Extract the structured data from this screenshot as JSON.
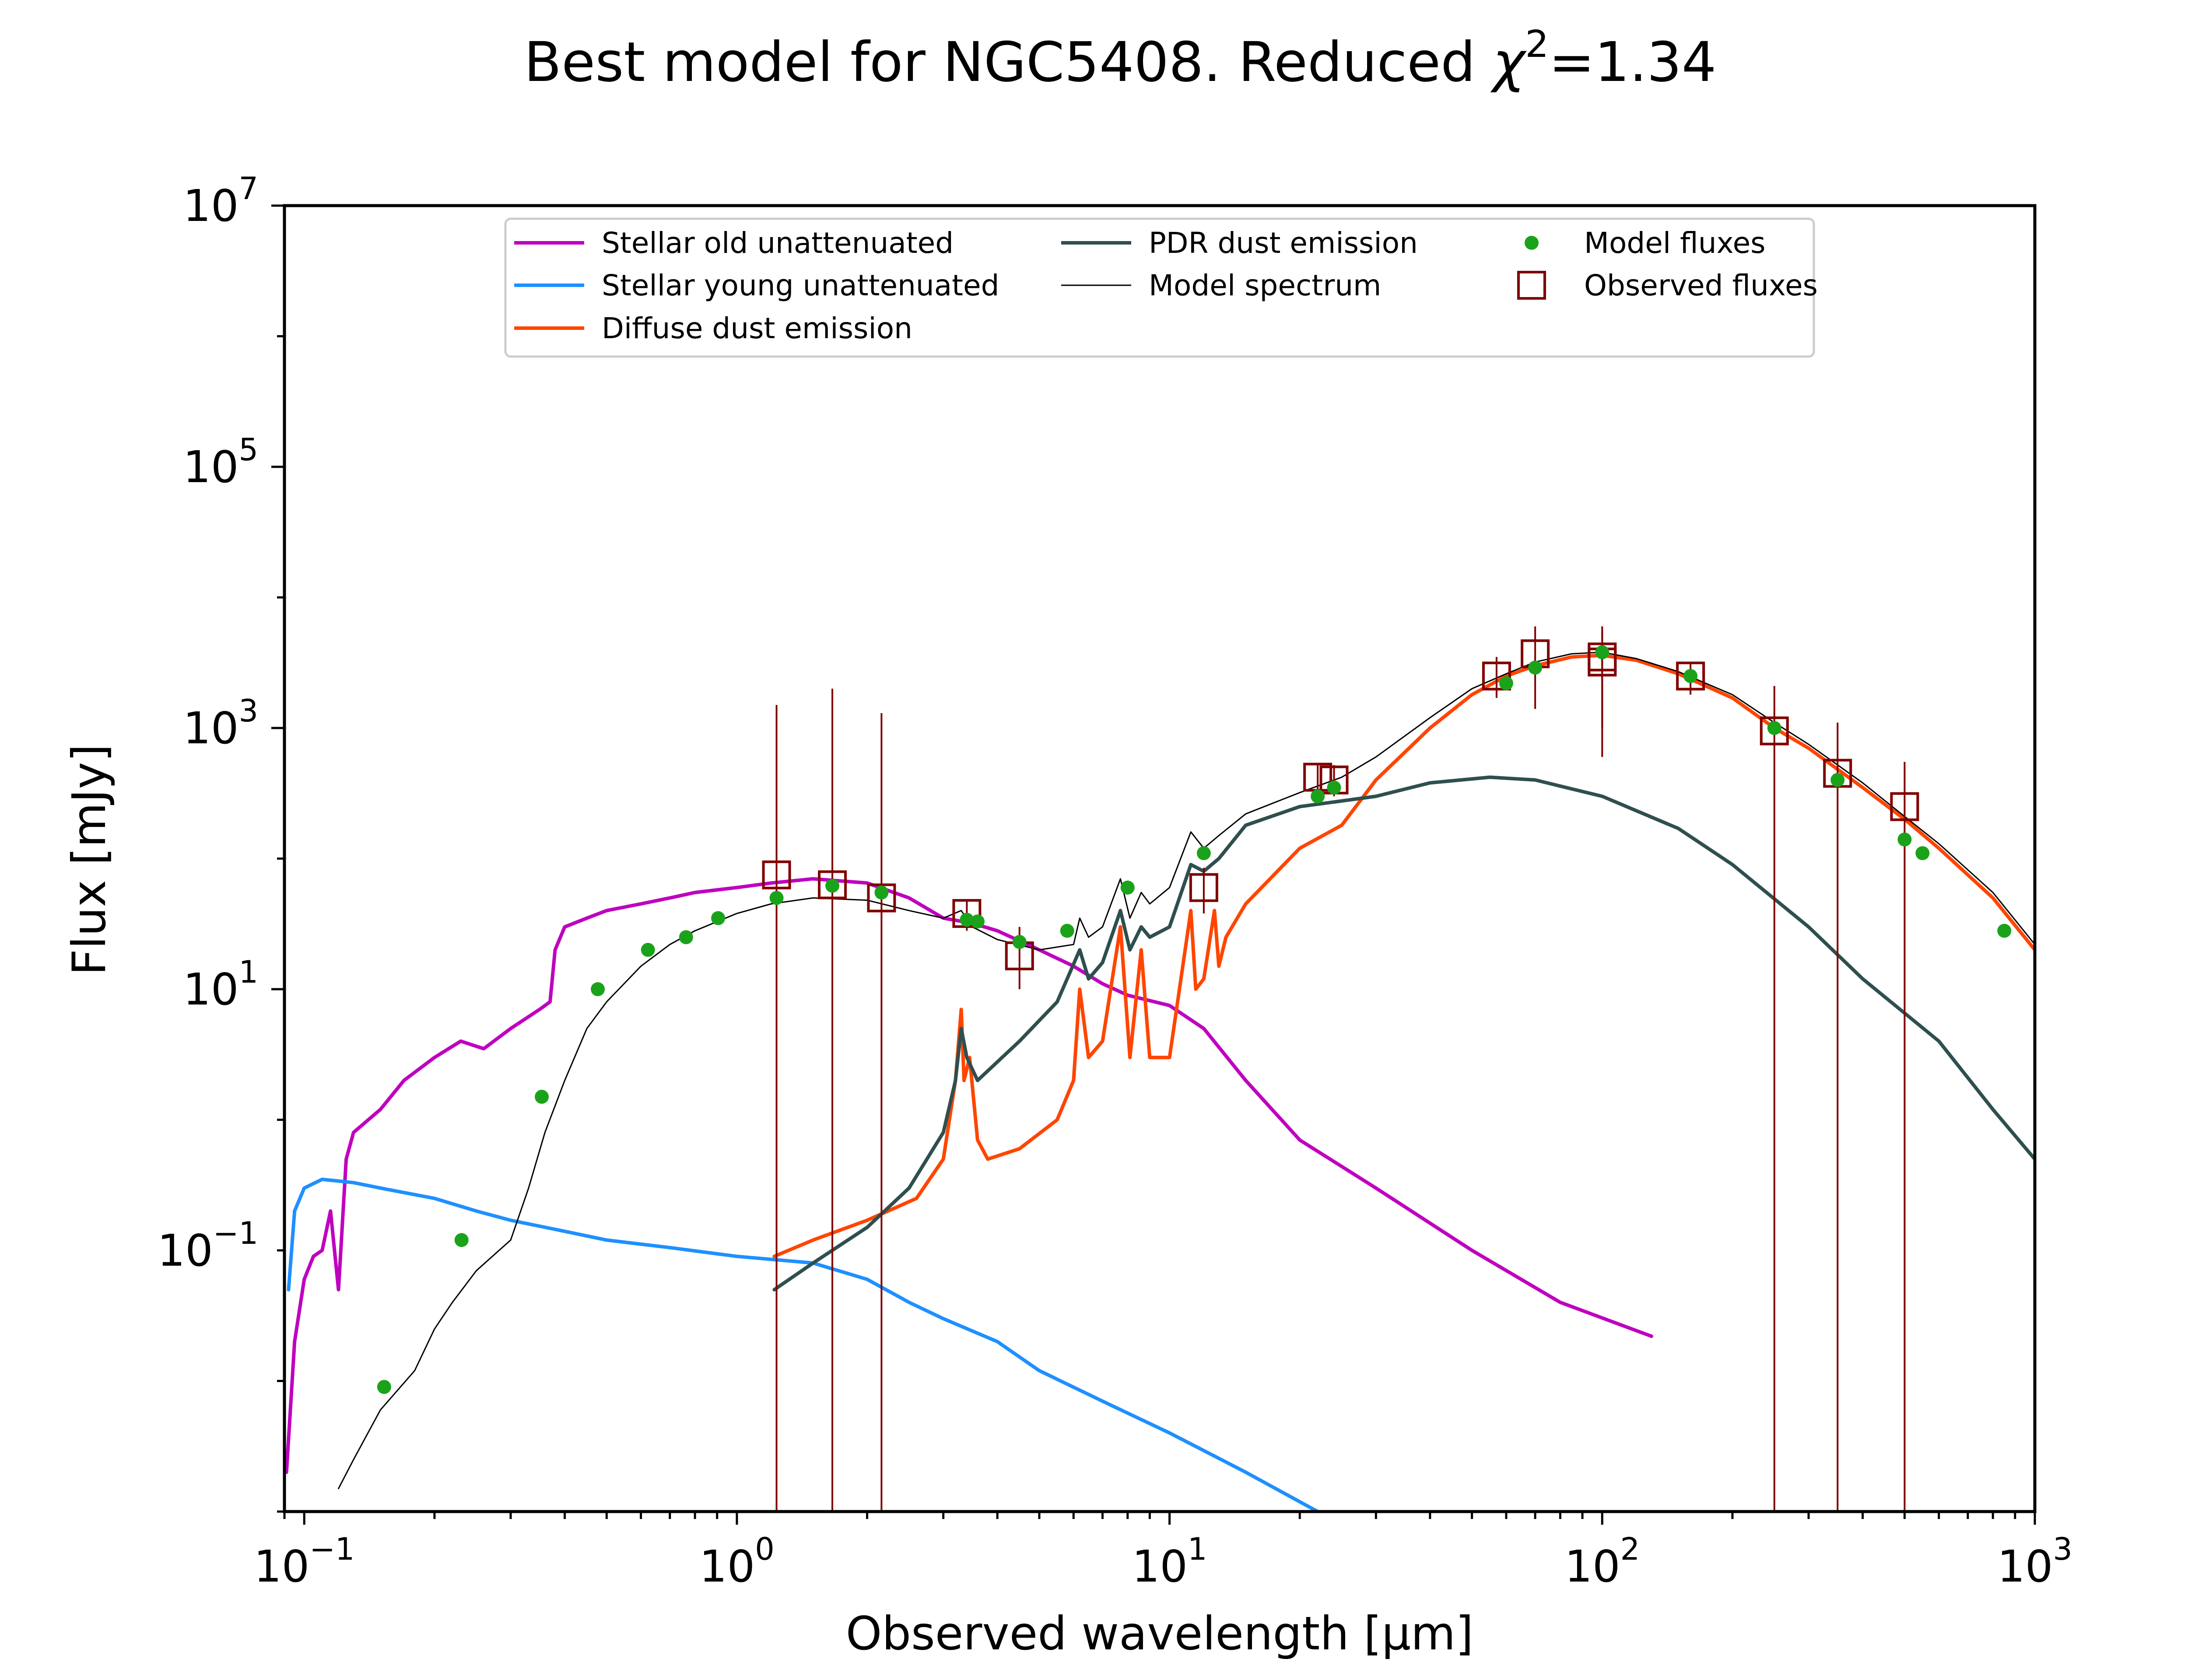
{
  "chart_data": {
    "type": "line",
    "title_main": "Best model for NGC5408. Reduced ",
    "title_chi": "χ",
    "title_sup": "2",
    "title_val": "=1.34",
    "xlabel": "Observed wavelength [μm]",
    "ylabel": "Flux [mJy]",
    "x_scale": "log",
    "y_scale": "log",
    "xlim": [
      0.09,
      1000
    ],
    "ylim": [
      0.001,
      10000000
    ],
    "grid": false,
    "legend_position": "top-center",
    "x_ticks": [
      {
        "value": 0.1,
        "base": "10",
        "exp": "−1"
      },
      {
        "value": 1,
        "base": "10",
        "exp": "0"
      },
      {
        "value": 10,
        "base": "10",
        "exp": "1"
      },
      {
        "value": 100,
        "base": "10",
        "exp": "2"
      },
      {
        "value": 1000,
        "base": "10",
        "exp": "3"
      }
    ],
    "y_ticks": [
      {
        "value": 0.1,
        "base": "10",
        "exp": "−1"
      },
      {
        "value": 10,
        "base": "10",
        "exp": "1"
      },
      {
        "value": 1000,
        "base": "10",
        "exp": "3"
      },
      {
        "value": 100000,
        "base": "10",
        "exp": "5"
      },
      {
        "value": 10000000,
        "base": "10",
        "exp": "7"
      }
    ],
    "legend": [
      {
        "label": "Stellar old unattenuated",
        "kind": "line",
        "color": "#bf00bf",
        "width": 8
      },
      {
        "label": "Stellar young unattenuated",
        "kind": "line",
        "color": "#1e90ff",
        "width": 8
      },
      {
        "label": "Diffuse dust emission",
        "kind": "line",
        "color": "#ff4500",
        "width": 8
      },
      {
        "label": "PDR dust emission",
        "kind": "line",
        "color": "#2f4f4f",
        "width": 8
      },
      {
        "label": "Model spectrum",
        "kind": "line",
        "color": "#000000",
        "width": 3
      },
      {
        "label": "Model fluxes",
        "kind": "dot",
        "color": "#1aa31a"
      },
      {
        "label": "Observed fluxes",
        "kind": "square",
        "color": "#800000"
      }
    ],
    "series": [
      {
        "name": "Stellar old unattenuated",
        "color": "#bf00bf",
        "width": 8,
        "points": [
          [
            0.091,
            0.002
          ],
          [
            0.095,
            0.02
          ],
          [
            0.1,
            0.06
          ],
          [
            0.105,
            0.09
          ],
          [
            0.11,
            0.1
          ],
          [
            0.115,
            0.2
          ],
          [
            0.12,
            0.05
          ],
          [
            0.125,
            0.5
          ],
          [
            0.13,
            0.8
          ],
          [
            0.15,
            1.2
          ],
          [
            0.17,
            2
          ],
          [
            0.2,
            3
          ],
          [
            0.23,
            4
          ],
          [
            0.26,
            3.5
          ],
          [
            0.3,
            5
          ],
          [
            0.35,
            7
          ],
          [
            0.37,
            8
          ],
          [
            0.38,
            20
          ],
          [
            0.4,
            30
          ],
          [
            0.45,
            35
          ],
          [
            0.5,
            40
          ],
          [
            0.6,
            45
          ],
          [
            0.7,
            50
          ],
          [
            0.8,
            55
          ],
          [
            1.0,
            60
          ],
          [
            1.2,
            65
          ],
          [
            1.5,
            70
          ],
          [
            2.0,
            65
          ],
          [
            2.5,
            50
          ],
          [
            3.0,
            35
          ],
          [
            3.5,
            32
          ],
          [
            4.0,
            28
          ],
          [
            5.0,
            20
          ],
          [
            6.0,
            15
          ],
          [
            7.0,
            11
          ],
          [
            8.0,
            9
          ],
          [
            10,
            7.5
          ],
          [
            12,
            5
          ],
          [
            15,
            2
          ],
          [
            20,
            0.7
          ],
          [
            30,
            0.3
          ],
          [
            50,
            0.1
          ],
          [
            80,
            0.04
          ],
          [
            130,
            0.022
          ]
        ]
      },
      {
        "name": "Stellar young unattenuated",
        "color": "#1e90ff",
        "width": 8,
        "points": [
          [
            0.092,
            0.05
          ],
          [
            0.095,
            0.2
          ],
          [
            0.1,
            0.3
          ],
          [
            0.11,
            0.35
          ],
          [
            0.13,
            0.33
          ],
          [
            0.15,
            0.3
          ],
          [
            0.2,
            0.25
          ],
          [
            0.25,
            0.2
          ],
          [
            0.3,
            0.17
          ],
          [
            0.4,
            0.14
          ],
          [
            0.5,
            0.12
          ],
          [
            0.7,
            0.105
          ],
          [
            1.0,
            0.09
          ],
          [
            1.5,
            0.08
          ],
          [
            2.0,
            0.06
          ],
          [
            2.5,
            0.04
          ],
          [
            3.0,
            0.03
          ],
          [
            4.0,
            0.02
          ],
          [
            5.0,
            0.012
          ],
          [
            7.0,
            0.007
          ],
          [
            10,
            0.004
          ],
          [
            15,
            0.002
          ],
          [
            22,
            0.001
          ]
        ]
      },
      {
        "name": "Diffuse dust emission",
        "color": "#ff4500",
        "width": 8,
        "points": [
          [
            1.22,
            0.09
          ],
          [
            1.5,
            0.12
          ],
          [
            2.0,
            0.17
          ],
          [
            2.6,
            0.25
          ],
          [
            3.0,
            0.5
          ],
          [
            3.2,
            2
          ],
          [
            3.3,
            7
          ],
          [
            3.35,
            2
          ],
          [
            3.45,
            3
          ],
          [
            3.6,
            0.7
          ],
          [
            3.8,
            0.5
          ],
          [
            4.5,
            0.6
          ],
          [
            5.5,
            1
          ],
          [
            6.0,
            2
          ],
          [
            6.2,
            10
          ],
          [
            6.5,
            3
          ],
          [
            7.0,
            4
          ],
          [
            7.7,
            30
          ],
          [
            8.1,
            3
          ],
          [
            8.6,
            20
          ],
          [
            9.0,
            3
          ],
          [
            10,
            3
          ],
          [
            11.2,
            40
          ],
          [
            11.5,
            10
          ],
          [
            12,
            12
          ],
          [
            12.7,
            40
          ],
          [
            13,
            15
          ],
          [
            13.5,
            25
          ],
          [
            15,
            45
          ],
          [
            20,
            120
          ],
          [
            25,
            180
          ],
          [
            30,
            400
          ],
          [
            40,
            1000
          ],
          [
            50,
            1800
          ],
          [
            60,
            2500
          ],
          [
            70,
            3000
          ],
          [
            85,
            3500
          ],
          [
            100,
            3600
          ],
          [
            120,
            3300
          ],
          [
            150,
            2600
          ],
          [
            200,
            1700
          ],
          [
            250,
            1000
          ],
          [
            300,
            700
          ],
          [
            400,
            350
          ],
          [
            500,
            200
          ],
          [
            600,
            120
          ],
          [
            800,
            50
          ],
          [
            1000,
            20
          ]
        ]
      },
      {
        "name": "PDR dust emission",
        "color": "#2f4f4f",
        "width": 8,
        "points": [
          [
            1.22,
            0.05
          ],
          [
            1.5,
            0.08
          ],
          [
            2.0,
            0.15
          ],
          [
            2.5,
            0.3
          ],
          [
            3.0,
            0.8
          ],
          [
            3.2,
            2
          ],
          [
            3.3,
            5
          ],
          [
            3.4,
            3
          ],
          [
            3.6,
            2
          ],
          [
            4.5,
            4
          ],
          [
            5.5,
            8
          ],
          [
            6.2,
            20
          ],
          [
            6.5,
            12
          ],
          [
            7.0,
            16
          ],
          [
            7.7,
            40
          ],
          [
            8.1,
            20
          ],
          [
            8.6,
            30
          ],
          [
            9.0,
            25
          ],
          [
            10,
            30
          ],
          [
            11.2,
            90
          ],
          [
            12,
            80
          ],
          [
            13,
            100
          ],
          [
            15,
            180
          ],
          [
            20,
            250
          ],
          [
            30,
            300
          ],
          [
            40,
            380
          ],
          [
            55,
            420
          ],
          [
            70,
            400
          ],
          [
            100,
            300
          ],
          [
            150,
            170
          ],
          [
            200,
            90
          ],
          [
            300,
            30
          ],
          [
            400,
            12
          ],
          [
            600,
            4
          ],
          [
            800,
            1.2
          ],
          [
            1000,
            0.5
          ]
        ]
      },
      {
        "name": "Model spectrum",
        "color": "#000000",
        "width": 3,
        "points": [
          [
            0.12,
            0.0015
          ],
          [
            0.13,
            0.0025
          ],
          [
            0.15,
            0.006
          ],
          [
            0.18,
            0.012
          ],
          [
            0.2,
            0.025
          ],
          [
            0.22,
            0.04
          ],
          [
            0.25,
            0.07
          ],
          [
            0.3,
            0.12
          ],
          [
            0.33,
            0.3
          ],
          [
            0.36,
            0.8
          ],
          [
            0.4,
            2
          ],
          [
            0.45,
            5
          ],
          [
            0.5,
            8
          ],
          [
            0.6,
            15
          ],
          [
            0.7,
            22
          ],
          [
            0.8,
            28
          ],
          [
            1.0,
            38
          ],
          [
            1.2,
            45
          ],
          [
            1.5,
            50
          ],
          [
            2.0,
            48
          ],
          [
            2.5,
            40
          ],
          [
            3.0,
            35
          ],
          [
            3.3,
            40
          ],
          [
            3.5,
            30
          ],
          [
            4.0,
            24
          ],
          [
            5.0,
            20
          ],
          [
            6.0,
            22
          ],
          [
            6.2,
            35
          ],
          [
            6.5,
            25
          ],
          [
            7.0,
            30
          ],
          [
            7.7,
            70
          ],
          [
            8.1,
            35
          ],
          [
            8.6,
            55
          ],
          [
            9.0,
            45
          ],
          [
            10,
            60
          ],
          [
            11.2,
            160
          ],
          [
            12,
            120
          ],
          [
            13,
            150
          ],
          [
            15,
            220
          ],
          [
            20,
            320
          ],
          [
            25,
            420
          ],
          [
            30,
            600
          ],
          [
            40,
            1200
          ],
          [
            50,
            2000
          ],
          [
            60,
            2600
          ],
          [
            70,
            3200
          ],
          [
            85,
            3700
          ],
          [
            100,
            3800
          ],
          [
            120,
            3400
          ],
          [
            150,
            2700
          ],
          [
            200,
            1800
          ],
          [
            250,
            1100
          ],
          [
            300,
            750
          ],
          [
            400,
            380
          ],
          [
            500,
            210
          ],
          [
            600,
            130
          ],
          [
            800,
            55
          ],
          [
            1000,
            22
          ]
        ]
      }
    ],
    "model_fluxes": [
      [
        0.153,
        0.009
      ],
      [
        0.231,
        0.12
      ],
      [
        0.354,
        1.5
      ],
      [
        0.477,
        10
      ],
      [
        0.623,
        20
      ],
      [
        0.763,
        25
      ],
      [
        0.905,
        35
      ],
      [
        1.235,
        50
      ],
      [
        1.662,
        62
      ],
      [
        2.159,
        55
      ],
      [
        3.4,
        34
      ],
      [
        3.6,
        33
      ],
      [
        4.5,
        23
      ],
      [
        5.8,
        28
      ],
      [
        8.0,
        60
      ],
      [
        12,
        110
      ],
      [
        22,
        300
      ],
      [
        24,
        350
      ],
      [
        60,
        2200
      ],
      [
        70,
        2900
      ],
      [
        100,
        3800
      ],
      [
        160,
        2500
      ],
      [
        250,
        1000
      ],
      [
        350,
        400
      ],
      [
        500,
        140
      ],
      [
        550,
        110
      ],
      [
        850,
        28
      ]
    ],
    "observed_fluxes": [
      {
        "x": 1.235,
        "y": 75,
        "lo": 0.001,
        "hi": 1500
      },
      {
        "x": 1.662,
        "y": 63,
        "lo": 0.001,
        "hi": 2000
      },
      {
        "x": 2.159,
        "y": 50,
        "lo": 0.001,
        "hi": 1300
      },
      {
        "x": 3.4,
        "y": 38,
        "lo": 28,
        "hi": 48
      },
      {
        "x": 4.5,
        "y": 18,
        "lo": 10,
        "hi": 30
      },
      {
        "x": 12,
        "y": 60,
        "lo": 38,
        "hi": 85
      },
      {
        "x": 22,
        "y": 420,
        "lo": 320,
        "hi": 540
      },
      {
        "x": 24,
        "y": 400,
        "lo": 300,
        "hi": 520
      },
      {
        "x": 57,
        "y": 2500,
        "lo": 1700,
        "hi": 3500
      },
      {
        "x": 70,
        "y": 3700,
        "lo": 1400,
        "hi": 6000
      },
      {
        "x": 100,
        "y": 3200,
        "lo": 600,
        "hi": 6000
      },
      {
        "x": 100,
        "y": 3500,
        "lo": 1000,
        "hi": 5500
      },
      {
        "x": 160,
        "y": 2500,
        "lo": 1800,
        "hi": 3200
      },
      {
        "x": 250,
        "y": 950,
        "lo": 0.001,
        "hi": 2100
      },
      {
        "x": 350,
        "y": 450,
        "lo": 0.001,
        "hi": 1100
      },
      {
        "x": 500,
        "y": 250,
        "lo": 0.001,
        "hi": 550
      }
    ]
  }
}
